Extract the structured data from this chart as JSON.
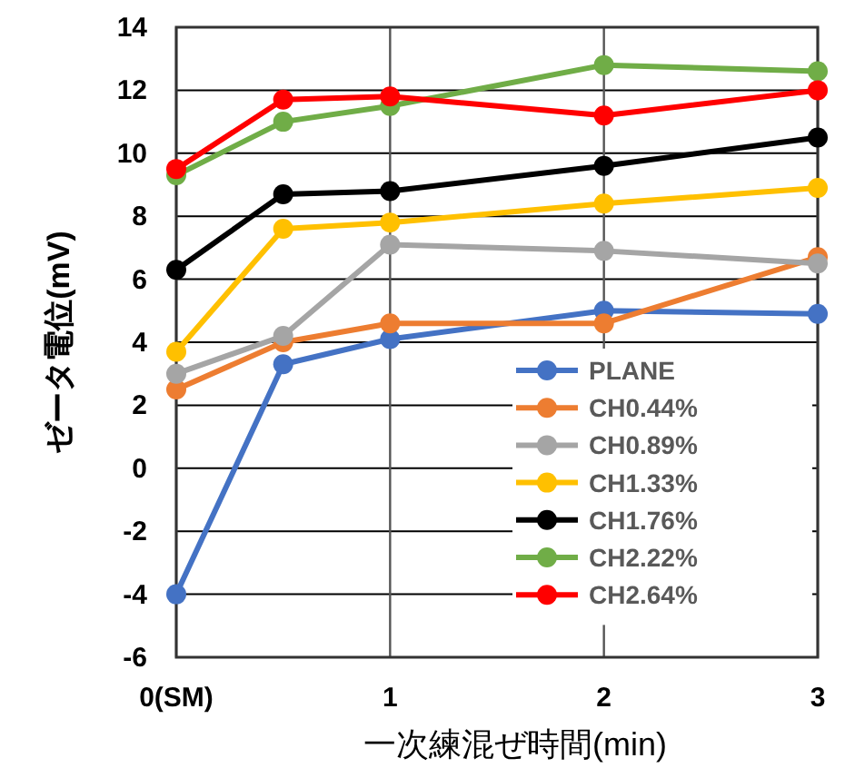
{
  "chart_data": {
    "type": "line",
    "xlabel": "一次練混ぜ時間(min)",
    "ylabel": "ゼータ電位(mV)",
    "x": [
      0,
      0.5,
      1,
      2,
      3
    ],
    "xlim": [
      0,
      3
    ],
    "xticks": [
      {
        "value": 0,
        "label": "0(SM)"
      },
      1,
      2,
      3
    ],
    "ylim": [
      -6,
      14
    ],
    "yticks": [
      -6,
      -4,
      -2,
      0,
      2,
      4,
      6,
      8,
      10,
      12,
      14
    ],
    "grid": true,
    "legend": "bottom right",
    "marker": "circle",
    "line_style": "solid",
    "series": [
      {
        "name": "PLANE",
        "color": "#4472c4",
        "values": [
          -4.0,
          3.3,
          4.1,
          5.0,
          4.9
        ]
      },
      {
        "name": "CH0.44%",
        "color": "#ed7d31",
        "values": [
          2.5,
          4.0,
          4.6,
          4.6,
          6.7
        ]
      },
      {
        "name": "CH0.89%",
        "color": "#a5a5a5",
        "values": [
          3.0,
          4.2,
          7.1,
          6.9,
          6.5
        ]
      },
      {
        "name": "CH1.33%",
        "color": "#ffc000",
        "values": [
          3.7,
          7.6,
          7.8,
          8.4,
          8.9
        ]
      },
      {
        "name": "CH1.76%",
        "color": "#000000",
        "values": [
          6.3,
          8.7,
          8.8,
          9.6,
          10.5
        ]
      },
      {
        "name": "CH2.22%",
        "color": "#70ad47",
        "values": [
          9.3,
          11.0,
          11.5,
          12.8,
          12.6
        ]
      },
      {
        "name": "CH2.64%",
        "color": "#ff0000",
        "values": [
          9.5,
          11.7,
          11.8,
          11.2,
          12.0
        ]
      }
    ]
  }
}
